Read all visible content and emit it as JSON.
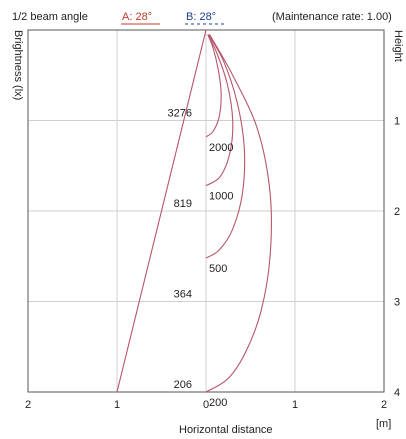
{
  "header": {
    "beam_label": "1/2 beam angle",
    "a_label": "A: 28°",
    "b_label": "B: 28°",
    "maintenance": "(Maintenance rate: 1.00)"
  },
  "colors": {
    "a": "#c0392b",
    "b": "#1f3f8f",
    "curve": "#b5566a",
    "grid": "#cfcfcf"
  },
  "chart_data": {
    "type": "line",
    "xlabel": "Horizontal distance",
    "x_unit": "[m]",
    "ylabel_left": "Brightness (lx)",
    "ylabel_right": "Height",
    "xlim": [
      -2,
      2
    ],
    "ylim": [
      0,
      4
    ],
    "x_ticks": [
      -2,
      -1,
      0,
      1,
      2
    ],
    "x_tick_labels": [
      "2",
      "1",
      "0",
      "1",
      "2"
    ],
    "y_ticks": [
      1,
      2,
      3,
      4
    ],
    "y_tick_labels": [
      "1",
      "2",
      "3",
      "4"
    ],
    "grid": true,
    "beam_edge_line": {
      "points": [
        [
          0,
          0
        ],
        [
          -1,
          4
        ]
      ]
    },
    "center_illuminance": [
      {
        "value": "3276",
        "height": 1
      },
      {
        "value": "819",
        "height": 2
      },
      {
        "value": "364",
        "height": 3
      },
      {
        "value": "206",
        "height": 4
      }
    ],
    "isolux_curves": [
      {
        "label": "2000",
        "points": [
          [
            0.02,
            0.05
          ],
          [
            0.08,
            0.2
          ],
          [
            0.14,
            0.45
          ],
          [
            0.17,
            0.7
          ],
          [
            0.15,
            0.95
          ],
          [
            0.08,
            1.12
          ],
          [
            0.0,
            1.18
          ]
        ]
      },
      {
        "label": "1000",
        "points": [
          [
            0.02,
            0.05
          ],
          [
            0.12,
            0.25
          ],
          [
            0.24,
            0.6
          ],
          [
            0.3,
            1.0
          ],
          [
            0.27,
            1.35
          ],
          [
            0.16,
            1.62
          ],
          [
            0.0,
            1.72
          ]
        ]
      },
      {
        "label": "500",
        "points": [
          [
            0.03,
            0.05
          ],
          [
            0.2,
            0.35
          ],
          [
            0.35,
            0.8
          ],
          [
            0.43,
            1.3
          ],
          [
            0.41,
            1.8
          ],
          [
            0.3,
            2.2
          ],
          [
            0.15,
            2.43
          ],
          [
            0.0,
            2.52
          ]
        ]
      },
      {
        "label": "200",
        "points": [
          [
            0.04,
            0.05
          ],
          [
            0.3,
            0.5
          ],
          [
            0.58,
            1.1
          ],
          [
            0.72,
            1.8
          ],
          [
            0.72,
            2.5
          ],
          [
            0.62,
            3.1
          ],
          [
            0.45,
            3.55
          ],
          [
            0.25,
            3.85
          ],
          [
            0.0,
            4.0
          ]
        ]
      }
    ]
  }
}
